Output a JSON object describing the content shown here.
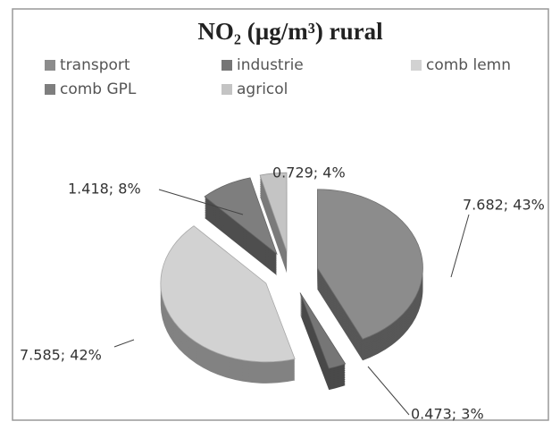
{
  "chart_data": {
    "type": "pie",
    "title": "NO₂ (µg/m³) rural",
    "categories": [
      "transport",
      "industrie",
      "comb lemn",
      "comb GPL",
      "agricol"
    ],
    "values": [
      7.682,
      0.473,
      7.585,
      1.418,
      0.729
    ],
    "value_labels": [
      "7.682; 43%",
      "0.473; 3%",
      "7.585; 42%",
      "1.418; 8%",
      "0.729; 4%"
    ],
    "colors": [
      "#8c8c8c",
      "#767676",
      "#d2d2d2",
      "#7e7e7e",
      "#c4c4c4"
    ],
    "legend": "top"
  }
}
